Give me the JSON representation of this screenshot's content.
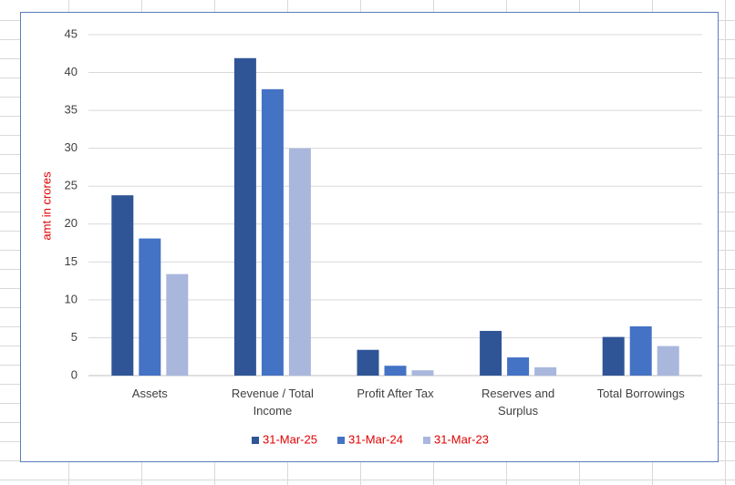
{
  "chart_data": {
    "type": "bar",
    "y_label": "amt in crores",
    "categories": [
      "Assets",
      "Revenue / Total Income",
      "Profit After Tax",
      "Reserves and Surplus",
      "Total Borrowings"
    ],
    "series": [
      {
        "name": "31-Mar-25",
        "color": "#2f5597",
        "values": [
          23.8,
          41.9,
          3.4,
          5.9,
          5.1
        ]
      },
      {
        "name": "31-Mar-24",
        "color": "#4472c4",
        "values": [
          18.1,
          37.8,
          1.3,
          2.4,
          6.5
        ]
      },
      {
        "name": "31-Mar-23",
        "color": "#a9b7dc",
        "values": [
          13.4,
          30.0,
          0.7,
          1.1,
          3.9
        ]
      }
    ],
    "ylim": [
      0,
      45
    ],
    "yticks": [
      0,
      5,
      10,
      15,
      20,
      25,
      30,
      35,
      40,
      45
    ],
    "grid": true,
    "legend": "bottom",
    "label_color": "#e00000"
  }
}
